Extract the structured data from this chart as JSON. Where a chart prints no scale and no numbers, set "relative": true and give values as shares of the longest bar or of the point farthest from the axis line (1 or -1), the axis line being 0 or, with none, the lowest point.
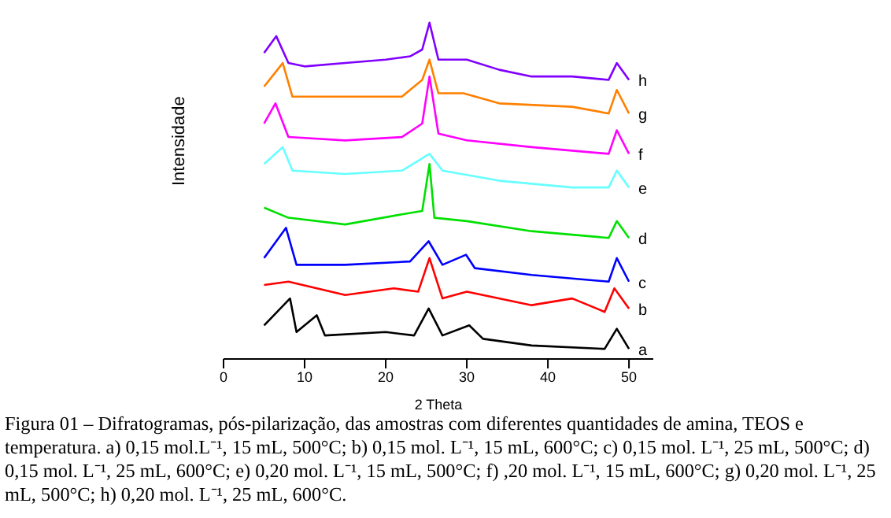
{
  "chart_data": {
    "type": "line",
    "relative": true,
    "xlabel": "2 Theta",
    "ylabel": "Intensidade",
    "xlim": [
      0,
      53
    ],
    "xticks": [
      0,
      10,
      20,
      30,
      40,
      50
    ],
    "annotations": [
      "Figura 01 – Difratogramas, pós-pilarização, das amostras com diferentes quantidades de amina, TEOS e temperatura. a) 0,15 mol.L⁻¹, 15 mL, 500°C; b) 0,15 mol. L⁻¹, 15 mL, 600°C; c) 0,15 mol. L⁻¹, 25 mL, 500°C; d) 0,15 mol. L⁻¹, 25 mL, 600°C; e) 0,20 mol. L⁻¹, 15 mL, 500°C; f) ,20 mol. L⁻¹, 15 mL, 600°C; g) 0,20 mol. L⁻¹, 25 mL, 500°C; h) 0,20 mol. L⁻¹, 25 mL, 600°C."
    ],
    "series": [
      {
        "name": "a",
        "color": "#000000",
        "x": [
          5,
          8.2,
          9,
          11.5,
          12.5,
          20,
          23.5,
          25.3,
          27,
          30.3,
          32,
          38,
          47,
          48.5,
          50
        ],
        "values": [
          0.1,
          0.18,
          0.08,
          0.13,
          0.07,
          0.08,
          0.07,
          0.15,
          0.07,
          0.1,
          0.06,
          0.04,
          0.03,
          0.09,
          0.03
        ]
      },
      {
        "name": "b",
        "color": "#ff0000",
        "x": [
          5,
          8,
          15,
          21,
          24,
          25.4,
          27,
          30,
          38,
          43,
          47,
          48.2,
          50
        ],
        "values": [
          0.22,
          0.23,
          0.19,
          0.21,
          0.2,
          0.3,
          0.18,
          0.2,
          0.16,
          0.18,
          0.14,
          0.21,
          0.15
        ]
      },
      {
        "name": "c",
        "color": "#0000ff",
        "x": [
          5,
          7.7,
          9,
          15,
          23,
          25.3,
          27,
          29.9,
          31,
          38,
          47.5,
          48.5,
          50
        ],
        "values": [
          0.3,
          0.39,
          0.28,
          0.28,
          0.29,
          0.35,
          0.28,
          0.31,
          0.27,
          0.25,
          0.23,
          0.3,
          0.23
        ]
      },
      {
        "name": "d",
        "color": "#00e000",
        "x": [
          5,
          8,
          15,
          22,
          24.5,
          25.4,
          26,
          30,
          38,
          47.5,
          48.5,
          50
        ],
        "values": [
          0.45,
          0.42,
          0.4,
          0.43,
          0.44,
          0.58,
          0.42,
          0.41,
          0.38,
          0.36,
          0.41,
          0.36
        ]
      },
      {
        "name": "e",
        "color": "#66ffff",
        "x": [
          5,
          7.3,
          8.5,
          15,
          22,
          25.4,
          27,
          34,
          43,
          47.5,
          48.5,
          50
        ],
        "values": [
          0.58,
          0.63,
          0.56,
          0.55,
          0.56,
          0.61,
          0.56,
          0.53,
          0.51,
          0.51,
          0.56,
          0.51
        ]
      },
      {
        "name": "f",
        "color": "#ff00ff",
        "x": [
          5,
          6.4,
          8,
          15,
          22,
          24.5,
          25.4,
          26.5,
          30,
          38,
          47.5,
          48.5,
          50
        ],
        "values": [
          0.7,
          0.76,
          0.66,
          0.65,
          0.66,
          0.7,
          0.84,
          0.67,
          0.65,
          0.63,
          0.61,
          0.68,
          0.61
        ]
      },
      {
        "name": "g",
        "color": "#ff8000",
        "x": [
          5,
          7.3,
          8.5,
          15,
          22,
          24.5,
          25.4,
          26.5,
          29.6,
          34,
          43,
          47.5,
          48.5,
          50
        ],
        "values": [
          0.81,
          0.88,
          0.78,
          0.78,
          0.78,
          0.83,
          0.89,
          0.79,
          0.79,
          0.76,
          0.75,
          0.73,
          0.8,
          0.73
        ]
      },
      {
        "name": "h",
        "color": "#8000ff",
        "x": [
          5,
          6.5,
          8,
          10,
          15,
          20,
          23,
          24.5,
          25.4,
          26.5,
          30,
          34,
          38,
          43,
          47.5,
          48.5,
          50
        ],
        "values": [
          0.91,
          0.96,
          0.88,
          0.87,
          0.88,
          0.89,
          0.9,
          0.92,
          1,
          0.89,
          0.89,
          0.86,
          0.84,
          0.84,
          0.83,
          0.88,
          0.83
        ]
      }
    ]
  }
}
